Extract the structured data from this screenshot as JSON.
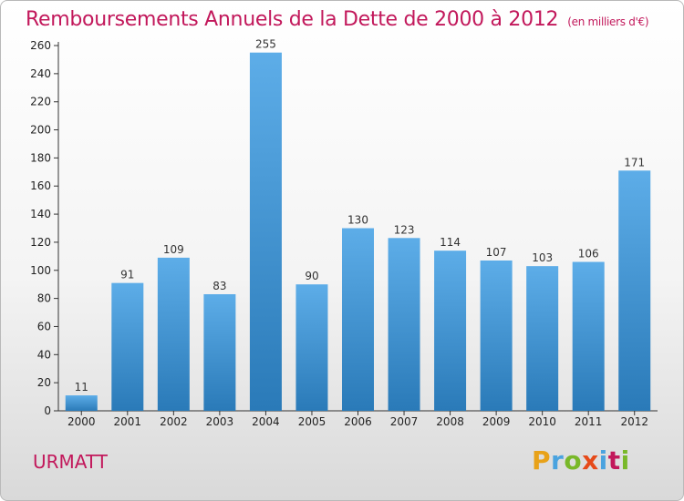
{
  "header": {
    "title": "Remboursements Annuels de la Dette de 2000 à 2012",
    "unit": "(en milliers d'€)"
  },
  "footer": {
    "commune": "URMATT",
    "logo_text": "Proxiti"
  },
  "colors": {
    "title": "#c2185b",
    "bar_light": "#5dade8",
    "bar_dark": "#2a7ab8",
    "logo": [
      "#e8a219",
      "#4aa3df",
      "#79b829",
      "#e64a19",
      "#4aa3df",
      "#c2185b",
      "#79b829"
    ]
  },
  "chart_data": {
    "type": "bar",
    "title": "Remboursements Annuels de la Dette de 2000 à 2012",
    "xlabel": "",
    "ylabel": "",
    "categories": [
      "2000",
      "2001",
      "2002",
      "2003",
      "2004",
      "2005",
      "2006",
      "2007",
      "2008",
      "2009",
      "2010",
      "2011",
      "2012"
    ],
    "values": [
      11,
      91,
      109,
      83,
      255,
      90,
      130,
      123,
      114,
      107,
      103,
      106,
      171
    ],
    "ylim": [
      0,
      260
    ],
    "yticks": [
      0,
      20,
      40,
      60,
      80,
      100,
      120,
      140,
      160,
      180,
      200,
      220,
      240,
      260
    ],
    "grid": false,
    "data_labels": true
  }
}
